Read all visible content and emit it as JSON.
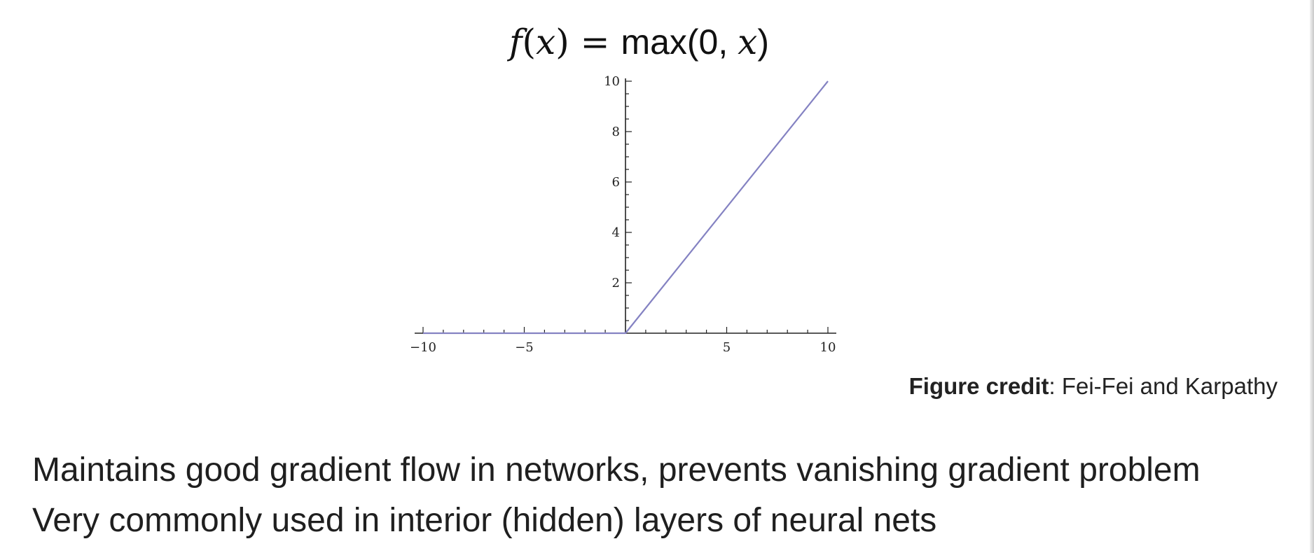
{
  "formula": {
    "func": "f",
    "var": "x",
    "open": "(",
    "close": ")",
    "equals": " = ",
    "rhs_name": "max",
    "rhs_args": "(0, ",
    "rhs_close": ")"
  },
  "chart_data": {
    "type": "line",
    "series": [
      {
        "x": [
          -10,
          0,
          10
        ],
        "y": [
          0,
          0,
          10
        ],
        "color": "#8482c2"
      }
    ],
    "xlim": [
      -10,
      10
    ],
    "ylim": [
      0,
      10
    ],
    "xticks_major": [
      -10,
      -5,
      5,
      10
    ],
    "xtick_labels": [
      "−10",
      "−5",
      "5",
      "10"
    ],
    "yticks_major": [
      2,
      4,
      6,
      8,
      10
    ],
    "ytick_labels": [
      "2",
      "4",
      "6",
      "8",
      "10"
    ],
    "minor_tick_step": 1,
    "minor_y_tick_step": 0.5,
    "grid": false,
    "title": "",
    "xlabel": "",
    "ylabel": ""
  },
  "credit": {
    "label": "Figure credit",
    "text": ": Fei-Fei and Karpathy"
  },
  "bullets": [
    "Maintains good gradient flow in networks, prevents vanishing gradient problem",
    "Very commonly used in interior (hidden) layers of neural nets"
  ]
}
